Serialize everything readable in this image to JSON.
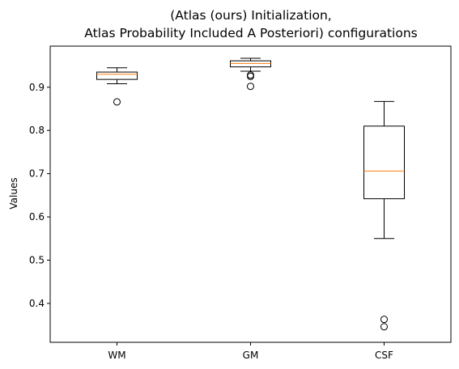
{
  "chart_data": {
    "type": "box",
    "title_lines": [
      "(Atlas (ours) Initialization,",
      "Atlas Probability Included A Posteriori) configurations"
    ],
    "xlabel": "",
    "ylabel": "Values",
    "categories": [
      "WM",
      "GM",
      "CSF"
    ],
    "ylim": [
      0.31,
      0.995
    ],
    "yticks": [
      0.4,
      0.5,
      0.6,
      0.7,
      0.8,
      0.9
    ],
    "grid": false,
    "boxes": [
      {
        "name": "WM",
        "whisker_low": 0.908,
        "q1": 0.918,
        "median": 0.93,
        "q3": 0.935,
        "whisker_high": 0.945,
        "outliers": [
          0.866
        ]
      },
      {
        "name": "GM",
        "whisker_low": 0.937,
        "q1": 0.947,
        "median": 0.955,
        "q3": 0.961,
        "whisker_high": 0.967,
        "outliers": [
          0.925,
          0.928,
          0.902
        ]
      },
      {
        "name": "CSF",
        "whisker_low": 0.55,
        "q1": 0.642,
        "median": 0.706,
        "q3": 0.81,
        "whisker_high": 0.867,
        "outliers": [
          0.363,
          0.346
        ]
      }
    ],
    "colors": {
      "box": "#000000",
      "median": "#ff7f0e",
      "background": "#ffffff"
    }
  }
}
